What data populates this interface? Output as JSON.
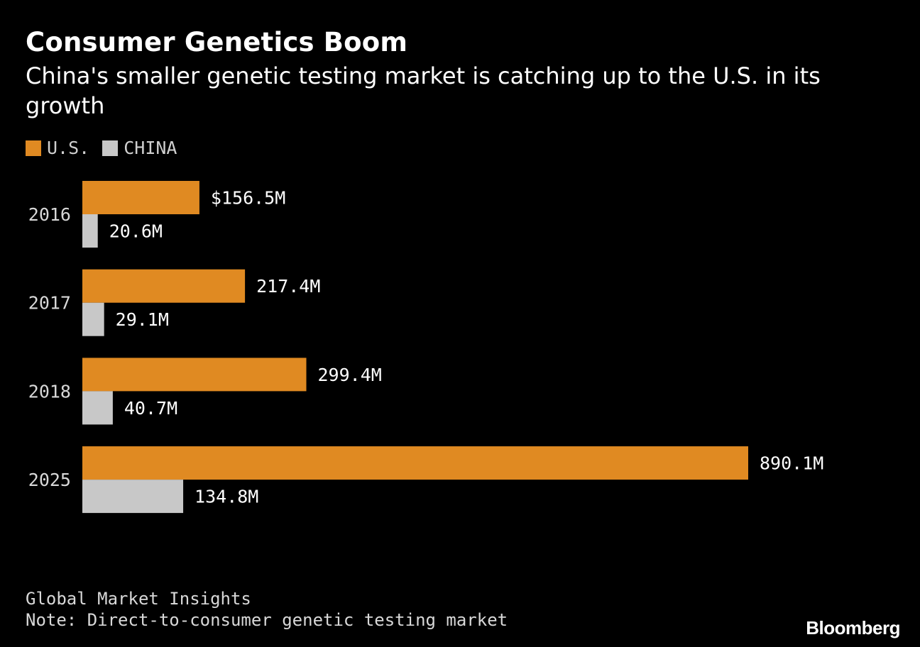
{
  "header": {
    "title": "Consumer Genetics Boom",
    "subtitle": "China's smaller genetic testing market is catching up to the U.S. in its growth"
  },
  "legend": {
    "items": [
      {
        "label": "U.S.",
        "color": "#e08a22"
      },
      {
        "label": "CHINA",
        "color": "#c8c8c8"
      }
    ]
  },
  "footer": {
    "source": "Global Market Insights",
    "note": "Note: Direct-to-consumer genetic testing market",
    "logo": "Bloomberg"
  },
  "chart_data": {
    "type": "bar",
    "orientation": "horizontal",
    "categories": [
      "2016",
      "2017",
      "2018",
      "2025"
    ],
    "series": [
      {
        "name": "U.S.",
        "color": "#e08a22",
        "values": [
          156.5,
          217.4,
          299.4,
          890.1
        ],
        "labels": [
          "$156.5M",
          "217.4M",
          "299.4M",
          "890.1M"
        ]
      },
      {
        "name": "CHINA",
        "color": "#c8c8c8",
        "values": [
          20.6,
          29.1,
          40.7,
          134.8
        ],
        "labels": [
          "20.6M",
          "29.1M",
          "40.7M",
          "134.8M"
        ]
      }
    ],
    "title": "Consumer Genetics Boom",
    "xlabel": "",
    "ylabel": "",
    "xlim": [
      0,
      890.1
    ],
    "grid": false,
    "legend_position": "top-left"
  }
}
